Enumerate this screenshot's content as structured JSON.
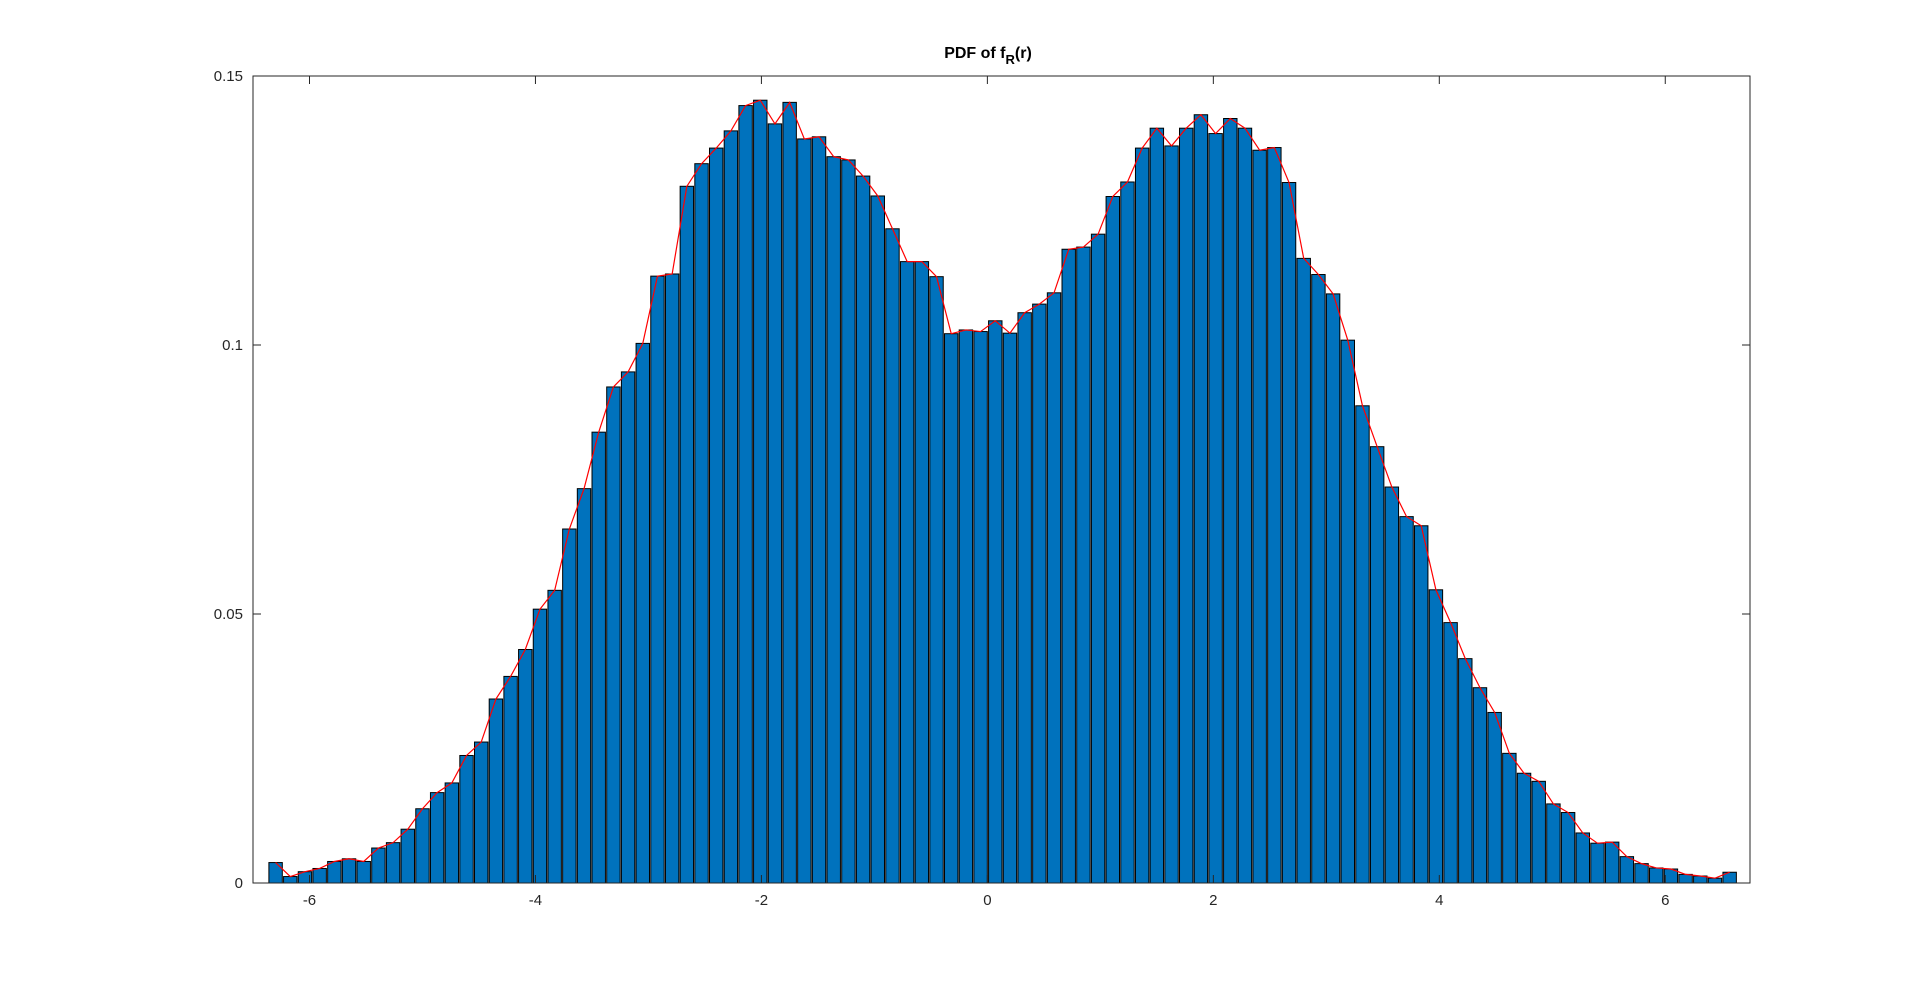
{
  "figure": {
    "background": "#ffffff"
  },
  "chart_data": {
    "type": "bar",
    "title": "PDF of f",
    "title_subscript": "R",
    "title_suffix": "(r)",
    "xlabel": "",
    "ylabel": "",
    "xlim": [
      -6.5,
      6.75
    ],
    "ylim": [
      0,
      0.15
    ],
    "xticks": [
      -6,
      -4,
      -2,
      0,
      2,
      4,
      6
    ],
    "xtick_labels": [
      "-6",
      "-4",
      "-2",
      "0",
      "2",
      "4",
      "6"
    ],
    "yticks": [
      0,
      0.05,
      0.1,
      0.15
    ],
    "ytick_labels": [
      "0",
      "0.05",
      "0.1",
      "0.15"
    ],
    "grid": false,
    "box": true,
    "bar_width": 0.1188,
    "colors": {
      "bar_fill": "#0072BD",
      "bar_edge": "#000000",
      "line": "#FF0000",
      "axis": "#262626"
    },
    "x": [
      -6.3,
      -6.17,
      -6.04,
      -5.91,
      -5.78,
      -5.65,
      -5.52,
      -5.39,
      -5.26,
      -5.13,
      -5.0,
      -4.87,
      -4.74,
      -4.61,
      -4.48,
      -4.35,
      -4.22,
      -4.09,
      -3.96,
      -3.83,
      -3.7,
      -3.57,
      -3.44,
      -3.31,
      -3.18,
      -3.05,
      -2.92,
      -2.79,
      -2.66,
      -2.53,
      -2.4,
      -2.27,
      -2.14,
      -2.01,
      -1.88,
      -1.75,
      -1.62,
      -1.49,
      -1.36,
      -1.23,
      -1.1,
      -0.97,
      -0.84,
      -0.71,
      -0.58,
      -0.45,
      -0.32,
      -0.19,
      -0.06,
      0.07,
      0.2,
      0.33,
      0.46,
      0.59,
      0.72,
      0.85,
      0.98,
      1.11,
      1.24,
      1.37,
      1.5,
      1.63,
      1.76,
      1.89,
      2.02,
      2.15,
      2.28,
      2.41,
      2.54,
      2.67,
      2.8,
      2.93,
      3.06,
      3.19,
      3.32,
      3.45,
      3.58,
      3.71,
      3.84,
      3.97,
      4.1,
      4.23,
      4.36,
      4.49,
      4.62,
      4.75,
      4.88,
      5.01,
      5.14,
      5.27,
      5.4,
      5.53,
      5.66,
      5.79,
      5.92,
      6.05,
      6.18,
      6.31,
      6.44,
      6.57
    ],
    "series": [
      {
        "type": "bar",
        "values": [
          0.0038,
          0.0012,
          0.0021,
          0.0027,
          0.004,
          0.0045,
          0.004,
          0.0065,
          0.0075,
          0.01,
          0.0138,
          0.0168,
          0.0186,
          0.0237,
          0.0262,
          0.0342,
          0.0384,
          0.0434,
          0.0509,
          0.0544,
          0.0658,
          0.0733,
          0.0838,
          0.0922,
          0.095,
          0.1003,
          0.1128,
          0.1132,
          0.1295,
          0.1337,
          0.1366,
          0.1398,
          0.1445,
          0.1455,
          0.1411,
          0.1451,
          0.1383,
          0.1387,
          0.135,
          0.1344,
          0.1314,
          0.1277,
          0.1216,
          0.1155,
          0.1155,
          0.1127,
          0.1021,
          0.1028,
          0.1025,
          0.1045,
          0.1022,
          0.106,
          0.1076,
          0.1097,
          0.1178,
          0.1182,
          0.1206,
          0.1276,
          0.1303,
          0.1366,
          0.1403,
          0.137,
          0.1403,
          0.1428,
          0.1393,
          0.1421,
          0.1403,
          0.1362,
          0.1367,
          0.1302,
          0.1161,
          0.1131,
          0.1095,
          0.1009,
          0.0887,
          0.0811,
          0.0736,
          0.0681,
          0.0664,
          0.0545,
          0.0484,
          0.0417,
          0.0363,
          0.0317,
          0.0241,
          0.0204,
          0.0189,
          0.0147,
          0.0131,
          0.0093,
          0.0074,
          0.0076,
          0.0049,
          0.0036,
          0.0028,
          0.0026,
          0.0016,
          0.0013,
          0.0009,
          0.002
        ]
      },
      {
        "type": "line",
        "values": [
          0.0038,
          0.0012,
          0.0021,
          0.0027,
          0.004,
          0.0045,
          0.004,
          0.0065,
          0.0075,
          0.01,
          0.0138,
          0.0168,
          0.0186,
          0.0237,
          0.0262,
          0.0342,
          0.0384,
          0.0434,
          0.0509,
          0.0544,
          0.0658,
          0.0733,
          0.0838,
          0.0922,
          0.095,
          0.1003,
          0.1128,
          0.1132,
          0.1295,
          0.1337,
          0.1366,
          0.1398,
          0.1445,
          0.1455,
          0.1411,
          0.1451,
          0.1383,
          0.1387,
          0.135,
          0.1344,
          0.1314,
          0.1277,
          0.1216,
          0.1155,
          0.1155,
          0.1127,
          0.1021,
          0.1028,
          0.1025,
          0.1045,
          0.1022,
          0.106,
          0.1076,
          0.1097,
          0.1178,
          0.1182,
          0.1206,
          0.1276,
          0.1303,
          0.1366,
          0.1403,
          0.137,
          0.1403,
          0.1428,
          0.1393,
          0.1421,
          0.1403,
          0.1362,
          0.1367,
          0.1302,
          0.1161,
          0.1131,
          0.1095,
          0.1009,
          0.0887,
          0.0811,
          0.0736,
          0.0681,
          0.0664,
          0.0545,
          0.0484,
          0.0417,
          0.0363,
          0.0317,
          0.0241,
          0.0204,
          0.0189,
          0.0147,
          0.0131,
          0.0093,
          0.0074,
          0.0076,
          0.0049,
          0.0036,
          0.0028,
          0.0026,
          0.0016,
          0.0013,
          0.0009,
          0.002
        ]
      }
    ]
  }
}
